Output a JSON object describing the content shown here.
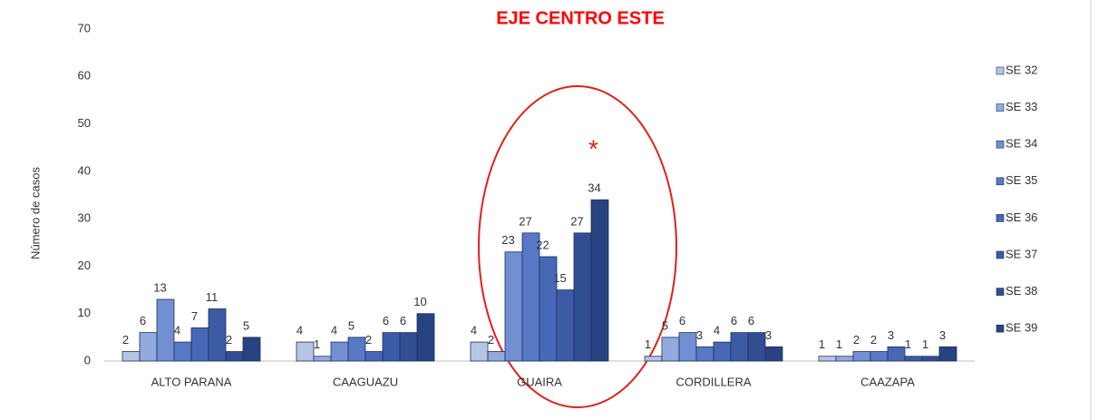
{
  "chart_data": {
    "type": "bar",
    "title": "EJE CENTRO ESTE",
    "y_label": "Número de casos",
    "categories": [
      "ALTO PARANA",
      "CAAGUAZU",
      "GUAIRA",
      "CORDILLERA",
      "CAAZAPA"
    ],
    "series": [
      {
        "name": "SE 32",
        "color": "#b7c5e4",
        "values": [
          2,
          4,
          4,
          1,
          1
        ]
      },
      {
        "name": "SE 33",
        "color": "#93aadc",
        "values": [
          6,
          1,
          2,
          5,
          1
        ]
      },
      {
        "name": "SE 34",
        "color": "#728fd2",
        "values": [
          13,
          4,
          23,
          6,
          2
        ]
      },
      {
        "name": "SE 35",
        "color": "#5779c6",
        "values": [
          4,
          5,
          27,
          3,
          2
        ]
      },
      {
        "name": "SE 36",
        "color": "#4768b6",
        "values": [
          7,
          2,
          22,
          4,
          3
        ]
      },
      {
        "name": "SE 37",
        "color": "#3c5ba5",
        "values": [
          11,
          6,
          15,
          6,
          1
        ]
      },
      {
        "name": "SE 38",
        "color": "#314e93",
        "values": [
          2,
          6,
          27,
          6,
          1
        ]
      },
      {
        "name": "SE 39",
        "color": "#284381",
        "values": [
          5,
          10,
          34,
          3,
          3
        ]
      }
    ],
    "ylim": [
      0,
      70
    ],
    "yticks": [
      0,
      10,
      20,
      30,
      40,
      50,
      60,
      70
    ],
    "annotation": "*",
    "annotation_color": "#e0201b",
    "legend": "right"
  }
}
